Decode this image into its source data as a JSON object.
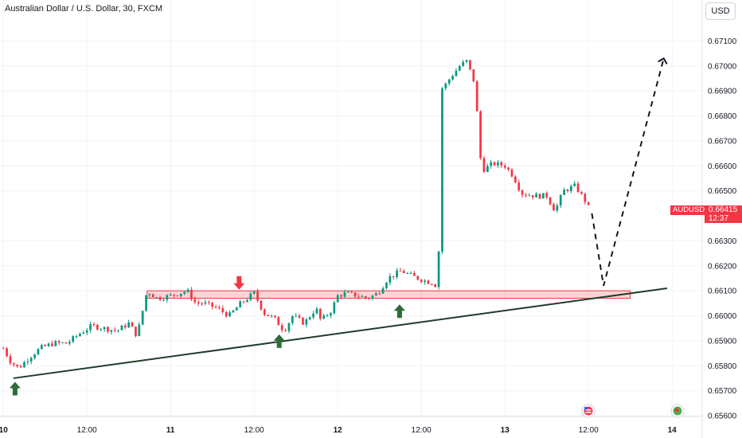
{
  "header": {
    "title": "Australian Dollar / U.S. Dollar, 30, FXCM",
    "currency_button": "USD"
  },
  "price_tag": {
    "symbol": "AUDUSD",
    "price": "0.66415",
    "countdown": "12:37",
    "color": "#f23645"
  },
  "colors": {
    "up": "#089981",
    "down": "#f23645",
    "zone": "#f23645",
    "trendline": "#1e3d2a",
    "arrow_up": "#2e6b38",
    "arrow_down": "#f23645"
  },
  "icons": [
    "calendar-event-flag-icon",
    "calendar-event-globe-icon"
  ],
  "chart_data": {
    "type": "candlestick",
    "symbol": "AUDUSD",
    "timeframe": "30",
    "ylim": [
      0.656,
      0.6713
    ],
    "y_ticks": [
      "0.67100",
      "0.67000",
      "0.66900",
      "0.66800",
      "0.66700",
      "0.66600",
      "0.66500",
      "0.66300",
      "0.66200",
      "0.66100",
      "0.66000",
      "0.65900",
      "0.65800",
      "0.65700",
      "0.65600"
    ],
    "x_ticks": [
      "10",
      "12:00",
      "11",
      "12:00",
      "12",
      "12:00",
      "13",
      "12:00",
      "14"
    ],
    "x_range": [
      -0.02,
      4.18
    ],
    "price_path": [
      [
        0,
        0.6587
      ],
      [
        0.04,
        0.6582
      ],
      [
        0.09,
        0.6579
      ],
      [
        0.15,
        0.6583
      ],
      [
        0.22,
        0.6587
      ],
      [
        0.3,
        0.6589
      ],
      [
        0.38,
        0.6589
      ],
      [
        0.46,
        0.6593
      ],
      [
        0.53,
        0.6596
      ],
      [
        0.6,
        0.6595
      ],
      [
        0.68,
        0.6594
      ],
      [
        0.75,
        0.6597
      ],
      [
        0.8,
        0.6592
      ],
      [
        0.86,
        0.661
      ],
      [
        0.92,
        0.6607
      ],
      [
        1.0,
        0.6608
      ],
      [
        1.05,
        0.6609
      ],
      [
        1.1,
        0.661
      ],
      [
        1.15,
        0.6605
      ],
      [
        1.2,
        0.6605
      ],
      [
        1.28,
        0.6603
      ],
      [
        1.35,
        0.66
      ],
      [
        1.42,
        0.6605
      ],
      [
        1.5,
        0.6609
      ],
      [
        1.56,
        0.6601
      ],
      [
        1.62,
        0.6599
      ],
      [
        1.68,
        0.6594
      ],
      [
        1.73,
        0.66
      ],
      [
        1.8,
        0.6597
      ],
      [
        1.87,
        0.6603
      ],
      [
        1.9,
        0.6598
      ],
      [
        1.96,
        0.6602
      ],
      [
        2.0,
        0.6608
      ],
      [
        2.05,
        0.6609
      ],
      [
        2.12,
        0.6608
      ],
      [
        2.18,
        0.6607
      ],
      [
        2.24,
        0.6609
      ],
      [
        2.3,
        0.6615
      ],
      [
        2.38,
        0.6618
      ],
      [
        2.44,
        0.6616
      ],
      [
        2.52,
        0.6614
      ],
      [
        2.58,
        0.6613
      ],
      [
        2.6,
        0.6609
      ],
      [
        2.62,
        0.669
      ],
      [
        2.67,
        0.6695
      ],
      [
        2.73,
        0.67
      ],
      [
        2.77,
        0.6702
      ],
      [
        2.82,
        0.6693
      ],
      [
        2.86,
        0.6658
      ],
      [
        2.93,
        0.6661
      ],
      [
        3.0,
        0.666
      ],
      [
        3.05,
        0.6656
      ],
      [
        3.1,
        0.6649
      ],
      [
        3.18,
        0.6648
      ],
      [
        3.25,
        0.6648
      ],
      [
        3.3,
        0.6642
      ],
      [
        3.35,
        0.665
      ],
      [
        3.42,
        0.6652
      ],
      [
        3.48,
        0.6646
      ],
      [
        3.52,
        0.6641
      ]
    ],
    "zones": [
      {
        "x_start": 0.86,
        "x_end": 3.75,
        "top": 0.661,
        "bottom": 0.6607
      }
    ],
    "trendline": {
      "start": [
        0.06,
        0.6575
      ],
      "end": [
        3.97,
        0.6611
      ]
    },
    "projection": {
      "points": [
        [
          3.52,
          0.6641
        ],
        [
          3.59,
          0.6612
        ],
        [
          3.95,
          0.6703
        ]
      ],
      "style": "dashed"
    },
    "markers": [
      {
        "type": "arrow-up",
        "x": 0.07,
        "price": 0.6571
      },
      {
        "type": "arrow-up",
        "x": 1.65,
        "price": 0.659
      },
      {
        "type": "arrow-up",
        "x": 2.37,
        "price": 0.6602
      },
      {
        "type": "arrow-down",
        "x": 1.41,
        "price": 0.6613
      }
    ]
  }
}
